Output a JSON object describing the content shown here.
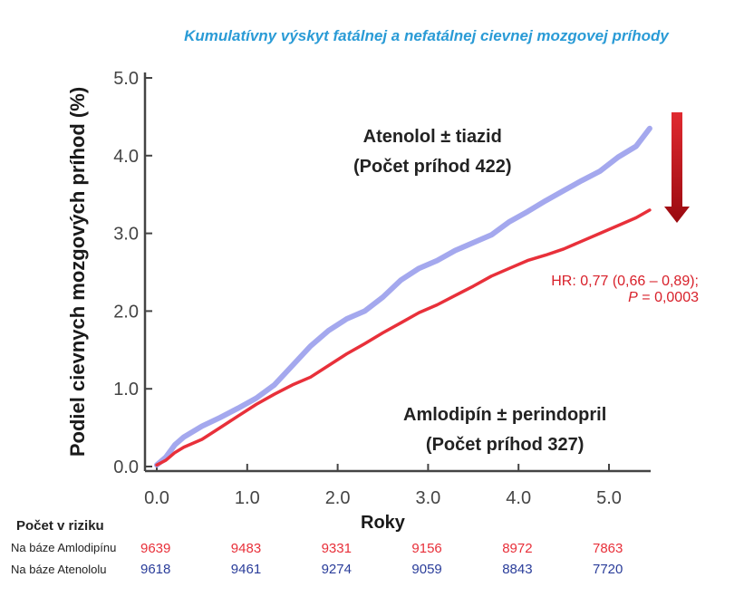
{
  "chart_data": {
    "type": "line",
    "title": "Kumulatívny výskyt fatálnej a nefatálnej cievnej mozgovej príhody",
    "xlabel": "Roky",
    "ylabel": "Podiel cievnych mozgových príhod (%)",
    "xlim": [
      0,
      5.5
    ],
    "ylim": [
      0,
      5
    ],
    "x_ticks": [
      "0.0",
      "1.0",
      "2.0",
      "3.0",
      "4.0",
      "5.0"
    ],
    "y_ticks": [
      "0.0",
      "1.0",
      "2.0",
      "3.0",
      "4.0",
      "5.0"
    ],
    "grid": false,
    "series": [
      {
        "name": "Atenolol ± tiazid",
        "color": "#a4a8ee",
        "x": [
          0,
          0.1,
          0.2,
          0.3,
          0.5,
          0.7,
          0.9,
          1.1,
          1.3,
          1.5,
          1.7,
          1.9,
          2.1,
          2.3,
          2.5,
          2.7,
          2.9,
          3.1,
          3.3,
          3.5,
          3.7,
          3.9,
          4.1,
          4.3,
          4.5,
          4.7,
          4.9,
          5.1,
          5.3,
          5.45
        ],
        "y": [
          0.02,
          0.12,
          0.28,
          0.38,
          0.52,
          0.63,
          0.75,
          0.88,
          1.05,
          1.3,
          1.55,
          1.75,
          1.9,
          2.0,
          2.18,
          2.4,
          2.55,
          2.65,
          2.78,
          2.88,
          2.98,
          3.15,
          3.28,
          3.42,
          3.55,
          3.68,
          3.8,
          3.98,
          4.12,
          4.35
        ]
      },
      {
        "name": "Amlodipín ± perindopril",
        "color": "#e8303a",
        "x": [
          0,
          0.1,
          0.2,
          0.3,
          0.5,
          0.7,
          0.9,
          1.1,
          1.3,
          1.5,
          1.7,
          1.9,
          2.1,
          2.3,
          2.5,
          2.7,
          2.9,
          3.1,
          3.3,
          3.5,
          3.7,
          3.9,
          4.1,
          4.3,
          4.5,
          4.7,
          4.9,
          5.1,
          5.3,
          5.45
        ],
        "y": [
          0.02,
          0.08,
          0.18,
          0.25,
          0.35,
          0.5,
          0.65,
          0.8,
          0.93,
          1.05,
          1.15,
          1.3,
          1.45,
          1.58,
          1.72,
          1.85,
          1.98,
          2.08,
          2.2,
          2.32,
          2.45,
          2.55,
          2.65,
          2.72,
          2.8,
          2.9,
          3.0,
          3.1,
          3.2,
          3.3
        ]
      }
    ],
    "annotations": {
      "atenolol_line1": "Atenolol ± tiazid",
      "atenolol_line2": "(Počet príhod 422)",
      "amlodipin_line1": "Amlodipín ± perindopril",
      "amlodipin_line2": "(Počet príhod 327)",
      "hr_line1": "HR: 0,77 (0,66 – 0,89);",
      "hr_p_symbol": "P",
      "hr_p_value": " = 0,0003"
    },
    "arrow_color": "#c8101a",
    "at_risk": {
      "title": "Počet v riziku",
      "rows": [
        {
          "label": "Na báze Amlodipínu",
          "color": "red",
          "values": [
            "9639",
            "9483",
            "9331",
            "9156",
            "8972",
            "7863"
          ]
        },
        {
          "label": "Na báze Atenololu",
          "color": "blue",
          "values": [
            "9618",
            "9461",
            "9274",
            "9059",
            "8843",
            "7720"
          ]
        }
      ]
    }
  }
}
